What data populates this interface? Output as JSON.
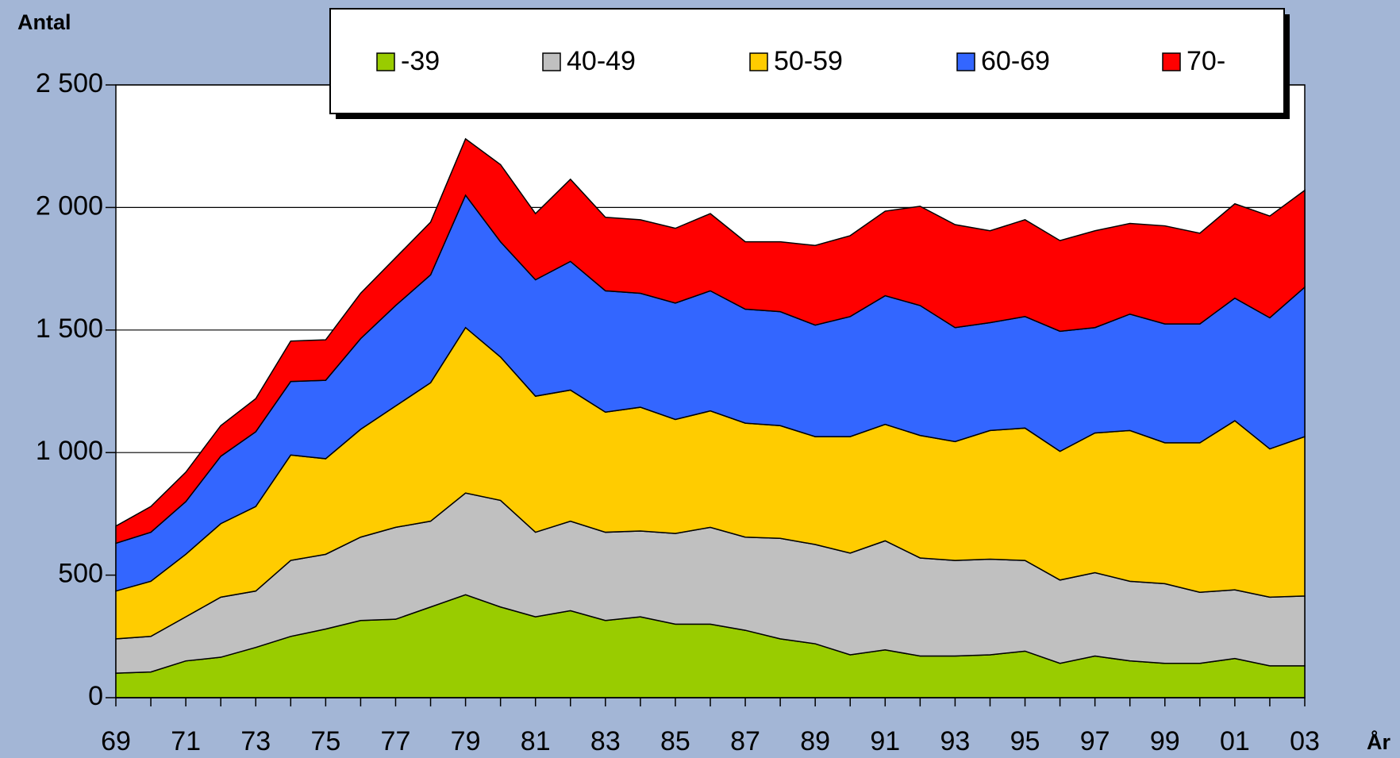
{
  "chart_data": {
    "type": "stacked-area",
    "y_label": "Antal",
    "x_label": "År",
    "categories": [
      "69",
      null,
      "71",
      null,
      "73",
      null,
      "75",
      null,
      "77",
      null,
      "79",
      null,
      "81",
      null,
      "83",
      null,
      "85",
      null,
      "87",
      null,
      "89",
      null,
      "91",
      null,
      "93",
      null,
      "95",
      null,
      "97",
      null,
      "99",
      null,
      "01",
      null,
      "03"
    ],
    "series": [
      {
        "name": "-39",
        "color": "#99cc00",
        "values": [
          100,
          105,
          150,
          165,
          205,
          250,
          280,
          315,
          320,
          370,
          420,
          370,
          330,
          355,
          315,
          330,
          300,
          300,
          275,
          240,
          220,
          175,
          195,
          170,
          170,
          175,
          190,
          140,
          170,
          150,
          140,
          140,
          160,
          130,
          130
        ]
      },
      {
        "name": "40-49",
        "color": "#c0c0c0",
        "values": [
          140,
          145,
          180,
          245,
          230,
          310,
          305,
          340,
          375,
          350,
          415,
          435,
          345,
          365,
          360,
          350,
          370,
          395,
          380,
          410,
          405,
          415,
          445,
          400,
          390,
          390,
          370,
          340,
          340,
          325,
          325,
          290,
          280,
          280,
          285
        ]
      },
      {
        "name": "50-59",
        "color": "#ffcc00",
        "values": [
          195,
          225,
          255,
          300,
          345,
          430,
          390,
          440,
          495,
          565,
          675,
          585,
          555,
          535,
          490,
          505,
          465,
          475,
          465,
          460,
          440,
          475,
          475,
          500,
          485,
          525,
          540,
          525,
          570,
          615,
          575,
          610,
          690,
          605,
          650
        ]
      },
      {
        "name": "60-69",
        "color": "#3366ff",
        "values": [
          195,
          200,
          215,
          275,
          305,
          300,
          320,
          370,
          410,
          440,
          540,
          470,
          475,
          525,
          495,
          465,
          475,
          490,
          465,
          465,
          455,
          490,
          525,
          530,
          465,
          440,
          455,
          490,
          430,
          475,
          485,
          485,
          500,
          535,
          610
        ]
      },
      {
        "name": "70-",
        "color": "#ff0000",
        "values": [
          70,
          105,
          120,
          125,
          135,
          165,
          165,
          185,
          195,
          215,
          230,
          315,
          270,
          335,
          300,
          300,
          305,
          315,
          275,
          285,
          325,
          330,
          345,
          405,
          420,
          375,
          395,
          370,
          395,
          370,
          400,
          370,
          385,
          415,
          395
        ]
      }
    ],
    "ylim": [
      0,
      2500
    ],
    "yticks": [
      0,
      500,
      {
        "value": 1000,
        "label": "1 000"
      },
      {
        "value": 1500,
        "label": "1 500"
      },
      {
        "value": 2000,
        "label": "2 000"
      },
      {
        "value": 2500,
        "label": "2 500"
      }
    ],
    "grid": true
  }
}
